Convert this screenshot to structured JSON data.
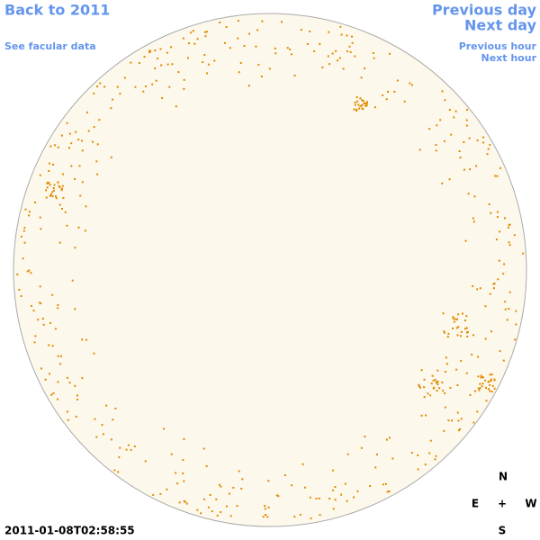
{
  "header": {
    "back": "Back to 2011",
    "facular": "See facular data",
    "previous_day": "Previous day",
    "next_day": "Next day",
    "previous_hour": "Previous hour",
    "next_hour": "Next hour"
  },
  "timestamp": "2011-01-08T02:58:55",
  "compass": {
    "north": "N",
    "east": "E",
    "center": "+",
    "west": "W",
    "south": "S"
  }
}
